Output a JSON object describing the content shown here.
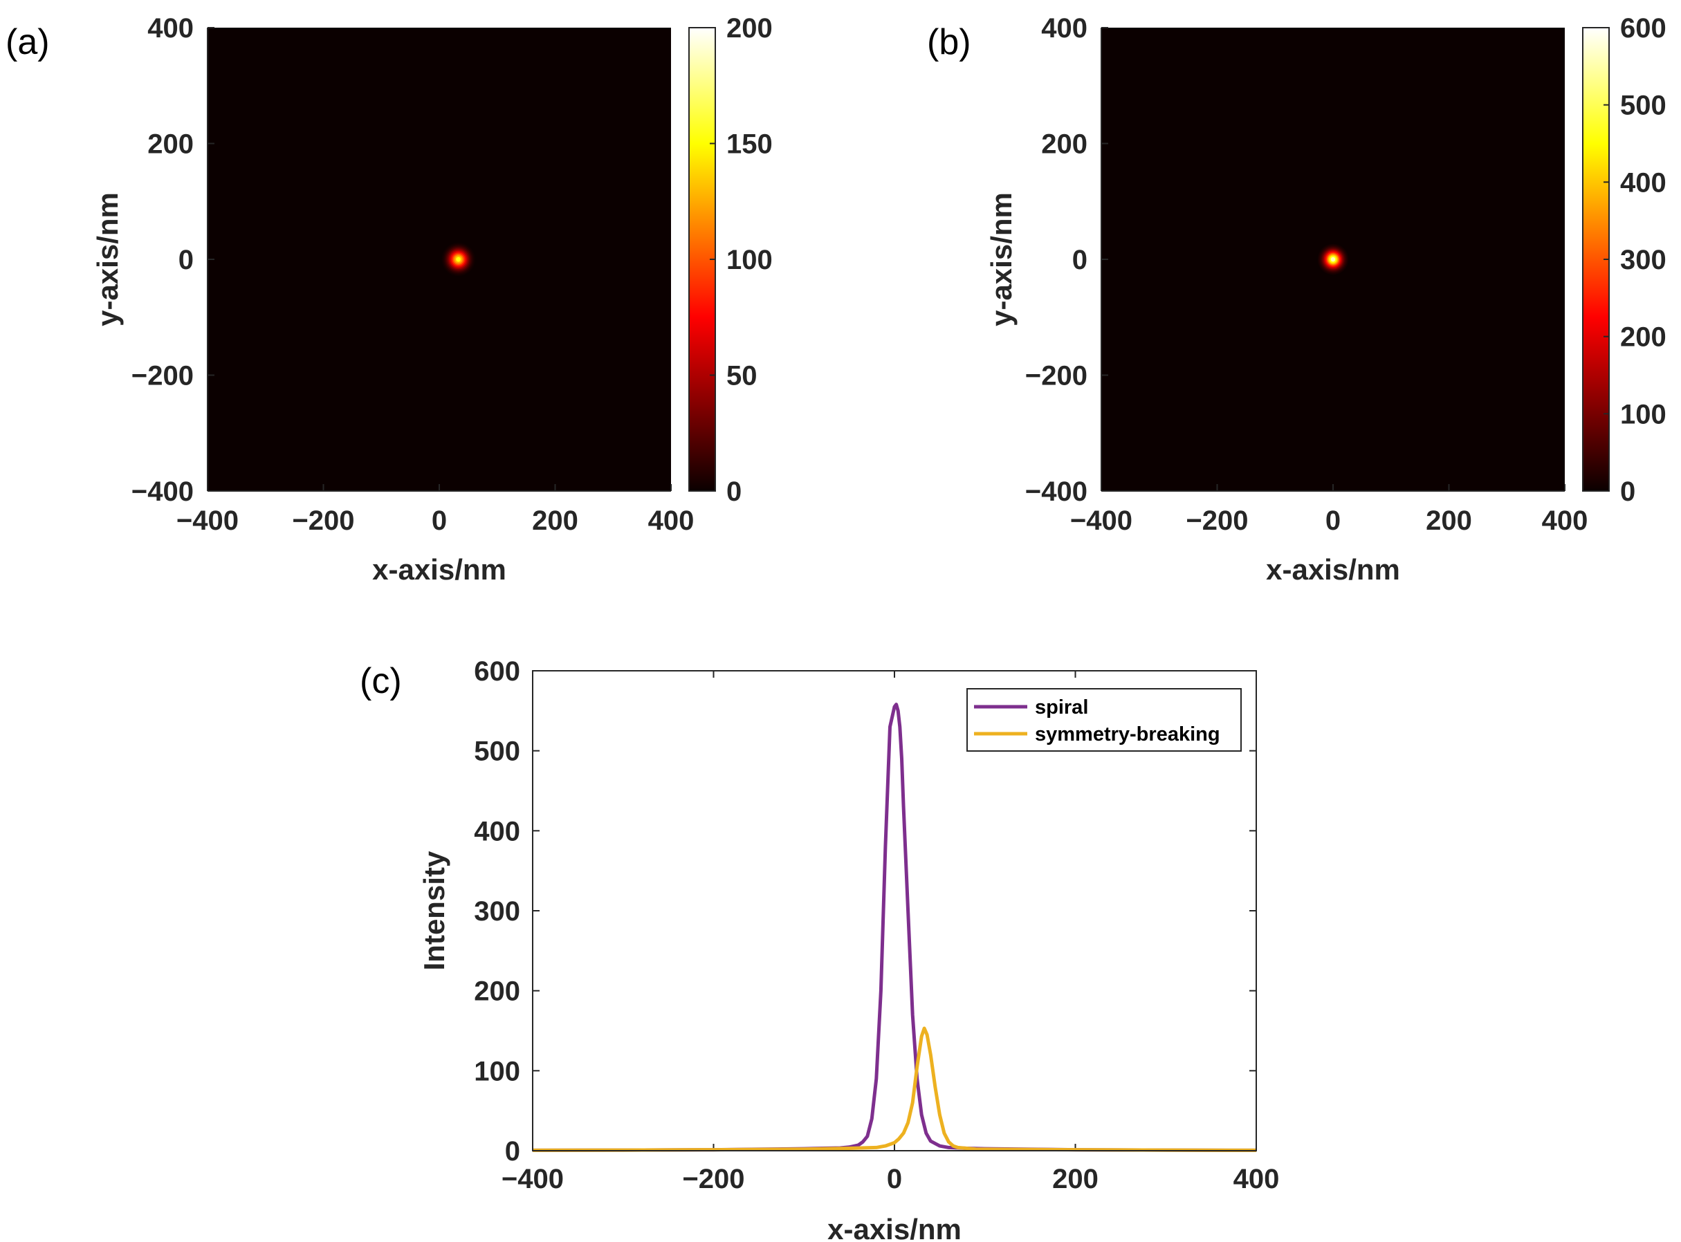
{
  "chart_data": [
    {
      "id": "a",
      "type": "heatmap",
      "panel_label": "(a)",
      "xlabel": "x-axis/nm",
      "ylabel": "y-axis/nm",
      "xlim": [
        -400,
        400
      ],
      "ylim": [
        -400,
        400
      ],
      "xticks": [
        -400,
        -200,
        0,
        200,
        400
      ],
      "yticks": [
        -400,
        -200,
        0,
        200,
        400
      ],
      "xtick_labels": [
        "−400",
        "−200",
        "0",
        "200",
        "400"
      ],
      "ytick_labels": [
        "−400",
        "−200",
        "0",
        "200",
        "400"
      ],
      "colormap": "hot",
      "colorbar": {
        "range": [
          0,
          200
        ],
        "ticks": [
          0,
          50,
          100,
          150,
          200
        ],
        "tick_labels": [
          "0",
          "50",
          "100",
          "150",
          "200"
        ]
      },
      "spot": {
        "x": 33,
        "y": 0,
        "peak": 153,
        "fwhm_nm": 26
      }
    },
    {
      "id": "b",
      "type": "heatmap",
      "panel_label": "(b)",
      "xlabel": "x-axis/nm",
      "ylabel": "y-axis/nm",
      "xlim": [
        -400,
        400
      ],
      "ylim": [
        -400,
        400
      ],
      "xticks": [
        -400,
        -200,
        0,
        200,
        400
      ],
      "yticks": [
        -400,
        -200,
        0,
        200,
        400
      ],
      "xtick_labels": [
        "−400",
        "−200",
        "0",
        "200",
        "400"
      ],
      "ytick_labels": [
        "−400",
        "−200",
        "0",
        "200",
        "400"
      ],
      "colormap": "hot",
      "colorbar": {
        "range": [
          0,
          600
        ],
        "ticks": [
          0,
          100,
          200,
          300,
          400,
          500,
          600
        ],
        "tick_labels": [
          "0",
          "100",
          "200",
          "300",
          "400",
          "500",
          "600"
        ]
      },
      "spot": {
        "x": 0,
        "y": 0,
        "peak": 558,
        "fwhm_nm": 24
      }
    },
    {
      "id": "c",
      "type": "line",
      "panel_label": "(c)",
      "xlabel": "x-axis/nm",
      "ylabel": "Intensity",
      "xlim": [
        -400,
        400
      ],
      "ylim": [
        0,
        600
      ],
      "xticks": [
        -400,
        -200,
        0,
        200,
        400
      ],
      "yticks": [
        0,
        100,
        200,
        300,
        400,
        500,
        600
      ],
      "xtick_labels": [
        "−400",
        "−200",
        "0",
        "200",
        "400"
      ],
      "ytick_labels": [
        "0",
        "100",
        "200",
        "300",
        "400",
        "500",
        "600"
      ],
      "legend_position": "top-right",
      "series": [
        {
          "name": "spiral",
          "color": "#7e2f8e",
          "x": [
            -400,
            -300,
            -200,
            -150,
            -100,
            -80,
            -60,
            -50,
            -40,
            -35,
            -30,
            -25,
            -20,
            -15,
            -10,
            -5,
            0,
            2,
            4,
            6,
            8,
            10,
            15,
            20,
            25,
            30,
            35,
            40,
            50,
            60,
            80,
            100,
            150,
            200,
            300,
            400
          ],
          "y": [
            0.5,
            0.8,
            1.2,
            1.8,
            2.5,
            3,
            3.5,
            4.5,
            7,
            11,
            18,
            40,
            90,
            200,
            380,
            530,
            555,
            558,
            550,
            530,
            490,
            430,
            300,
            170,
            90,
            45,
            22,
            12,
            6,
            4,
            3,
            2.5,
            1.8,
            1.2,
            0.8,
            0.5
          ]
        },
        {
          "name": "symmetry-breaking",
          "color": "#edb120",
          "x": [
            -400,
            -300,
            -200,
            -100,
            -50,
            -20,
            -10,
            0,
            5,
            10,
            15,
            20,
            25,
            30,
            33,
            36,
            40,
            45,
            50,
            55,
            60,
            65,
            70,
            80,
            90,
            100,
            150,
            200,
            300,
            400
          ],
          "y": [
            0.5,
            0.8,
            1.2,
            2,
            3,
            4,
            6,
            10,
            15,
            22,
            35,
            60,
            105,
            143,
            153,
            145,
            120,
            80,
            45,
            22,
            11,
            6,
            4,
            3,
            2,
            1.8,
            1.5,
            1.2,
            0.8,
            0.5
          ]
        }
      ]
    }
  ]
}
